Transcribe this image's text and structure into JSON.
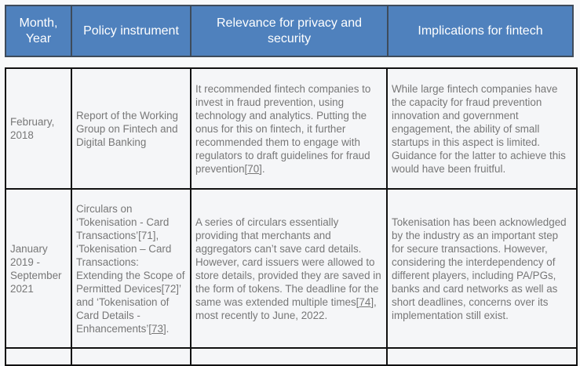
{
  "header": {
    "columns": [
      "Month, Year",
      "Policy instrument",
      "Relevance for privacy and security",
      "Implications for fintech"
    ]
  },
  "rows": [
    {
      "date": "February, 2018",
      "instrument": "Report of the Working Group on Fintech and Digital Banking",
      "relevance": {
        "text": "It recommended fintech companies to invest in fraud prevention, using technology and analytics. Putting the onus for this on fintech, it further recommended them to engage with regulators to draft guidelines for fraud prevention[",
        "ref": "70",
        "after": "]."
      },
      "implications": "While large fintech companies have the capacity for fraud prevention innovation and government engagement, the ability of small startups in this aspect is limited. Guidance for the latter to achieve this would have been fruitful."
    },
    {
      "date": "January 2019 - September 2021",
      "instrument": {
        "text": "Circulars on ‘Tokenisation - Card Transactions’[71], ‘Tokenisation – Card Transactions: Extending the Scope of Permitted Devices[72]’ and ‘Tokenisation of Card Details - Enhancements’[",
        "ref": "73",
        "after": "]."
      },
      "relevance": {
        "text": "A series of circulars essentially providing that merchants and aggregators can’t save card details. However, card issuers were allowed to store details, provided they are saved in the form of tokens. The deadline for the same was extended multiple times[",
        "ref": "74",
        "after": "], most recently to June, 2022."
      },
      "implications": "Tokenisation has been acknowledged by the industry as an important step for secure transactions. However, considering the interdependency of different players, including PA/PGs, banks and card networks as well as short deadlines, concerns over its implementation still exist."
    }
  ],
  "colors": {
    "header_bg": "#4f81bd",
    "header_text": "#ffffff",
    "body_text": "#777777",
    "cell_bg": "#f5f6f8"
  }
}
